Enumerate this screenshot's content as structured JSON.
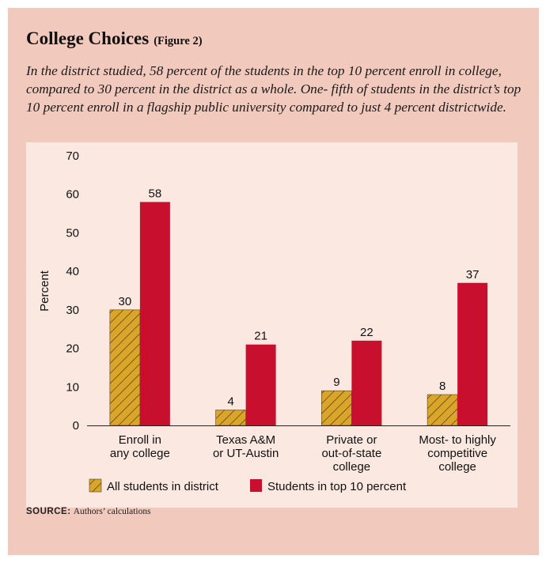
{
  "header": {
    "title": "College Choices",
    "figure_label": "(Figure 2)",
    "caption": "In the district studied, 58 percent of the students in the top 10 percent enroll in college, compared to 30 percent in the district as a whole. One- fifth of students in the district’s top 10 percent enroll in a flagship public university compared to just 4 percent districtwide."
  },
  "chart_data": {
    "type": "bar",
    "categories": [
      [
        "Enroll in",
        "any college"
      ],
      [
        "Texas A&M",
        "or UT-Austin"
      ],
      [
        "Private or",
        "out-of-state",
        "college"
      ],
      [
        "Most- to highly",
        "competitive",
        "college"
      ]
    ],
    "series": [
      {
        "name": "All students in district",
        "values": [
          30,
          4,
          9,
          8
        ],
        "color": "#d9a62a",
        "pattern": "hatched"
      },
      {
        "name": "Students in top 10 percent",
        "values": [
          58,
          21,
          22,
          37
        ],
        "color": "#c8102e",
        "pattern": "solid"
      }
    ],
    "ylabel": "Percent",
    "ylim": [
      0,
      70
    ],
    "yticks": [
      0,
      10,
      20,
      30,
      40,
      50,
      60,
      70
    ],
    "legend_position": "bottom"
  },
  "footer": {
    "source_label": "SOURCE:",
    "source_text": "Authors’ calculations"
  }
}
